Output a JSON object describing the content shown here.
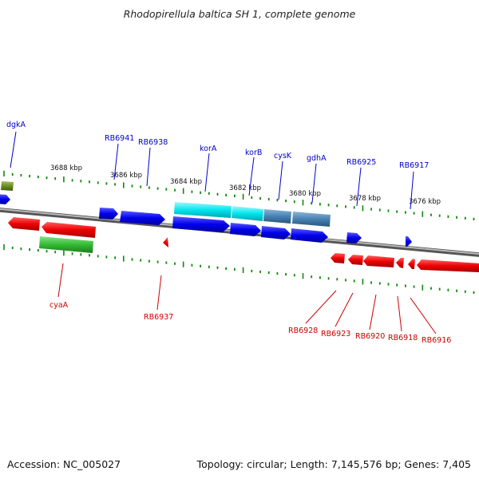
{
  "title": "Rhodopirellula baltica SH 1, complete genome",
  "footer": {
    "accession": "Accession: NC_005027",
    "summary": "Topology: circular; Length: 7,145,576 bp; Genes: 7,405"
  },
  "ruler": {
    "ticks": [
      "3688 kbp",
      "3686 kbp",
      "3684 kbp",
      "3682 kbp",
      "3680 kbp",
      "3678 kbp",
      "3676 kbp"
    ]
  },
  "genes": {
    "forward_labels": [
      "dgkA",
      "RB6941",
      "RB6938",
      "korA",
      "korB",
      "cysK",
      "gdhA",
      "RB6925",
      "RB6917"
    ],
    "reverse_labels": [
      "cyaA",
      "RB6937",
      "RB6928",
      "RB6923",
      "RB6920",
      "RB6918",
      "RB6916"
    ]
  },
  "colors": {
    "forward": "#0000ee",
    "reverse": "#ee0000",
    "forward_label": "#0000cc",
    "reverse_label": "#cc0000",
    "backbone": "#808080",
    "ticks": "#118811",
    "highlight_cyan": "#00e5ee",
    "highlight_steel": "#4682b4",
    "highlight_green": "#33bb33",
    "highlight_olive": "#6b8e23"
  }
}
